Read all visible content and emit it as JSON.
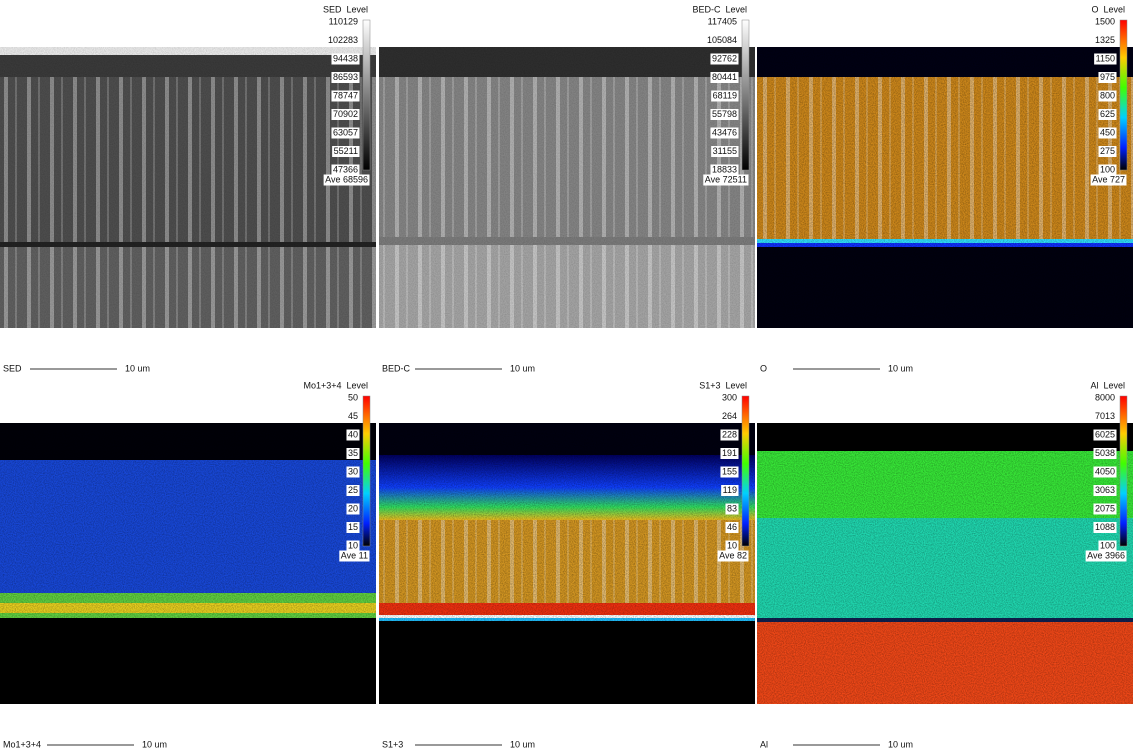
{
  "panels": [
    {
      "title": "SED  Level",
      "levels": [
        "110129",
        "102283",
        "94438",
        "86593",
        "78747",
        "70902",
        "63057",
        "55211",
        "47366"
      ],
      "average": "Ave 68596",
      "label": "SED",
      "scale": "10 um"
    },
    {
      "title": "BED-C  Level",
      "levels": [
        "117405",
        "105084",
        "92762",
        "80441",
        "68119",
        "55798",
        "43476",
        "31155",
        "18833"
      ],
      "average": "Ave 72511",
      "label": "BED-C",
      "scale": "10 um"
    },
    {
      "title": "O  Level",
      "levels": [
        "1500",
        "1325",
        "1150",
        "975",
        "800",
        "625",
        "450",
        "275",
        "100"
      ],
      "average": "Ave 727",
      "label": "O",
      "scale": "10 um"
    },
    {
      "title": "Mo1+3+4  Level",
      "levels": [
        "50",
        "45",
        "40",
        "35",
        "30",
        "25",
        "20",
        "15",
        "10"
      ],
      "average": "Ave 11",
      "label": "Mo1+3+4",
      "scale": "10 um"
    },
    {
      "title": "S1+3  Level",
      "levels": [
        "300",
        "264",
        "228",
        "191",
        "155",
        "119",
        "83",
        "46",
        "10"
      ],
      "average": "Ave 82",
      "label": "S1+3",
      "scale": "10 um"
    },
    {
      "title": "Al  Level",
      "levels": [
        "8000",
        "7013",
        "6025",
        "5038",
        "4050",
        "3063",
        "2075",
        "1088",
        "100"
      ],
      "average": "Ave 3966",
      "label": "Al",
      "scale": "10 um"
    }
  ]
}
